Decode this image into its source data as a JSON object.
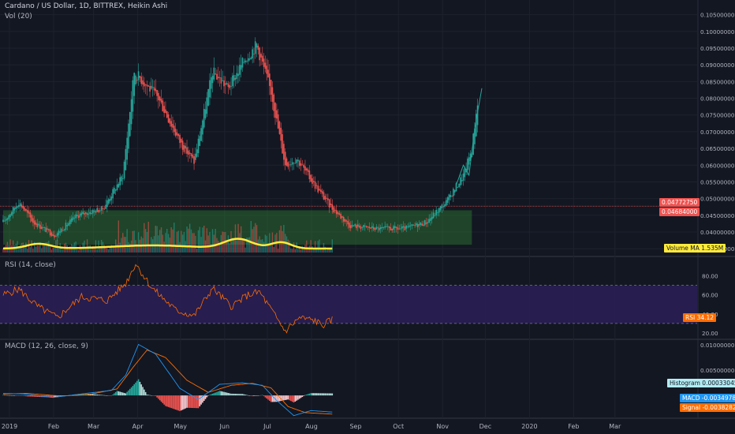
{
  "header": {
    "symbol_line": "Cardano / US Dollar, 1D, BITTREX, Heikin Ashi",
    "vol_label": "Vol (20)"
  },
  "colors": {
    "background": "#131722",
    "up": "#26a69a",
    "down": "#ef5350",
    "volume_ma": "#ffeb3b",
    "rsi_line": "#ff6d00",
    "rsi_band": "#2a1e54",
    "macd_line": "#2196f3",
    "signal_line": "#ff6d00",
    "demand_zone": "#2e7d32"
  },
  "chart_data": [
    {
      "type": "candlestick",
      "title": "Cardano / US Dollar, 1D, BITTREX, Heikin Ashi",
      "price_ticks": [
        "0.10500000",
        "0.10000000",
        "0.09500000",
        "0.09000000",
        "0.08500000",
        "0.08000000",
        "0.07500000",
        "0.07000000",
        "0.06500000",
        "0.06000000",
        "0.05500000",
        "0.05000000",
        "0.04500000",
        "0.04000000",
        "0.03500000"
      ],
      "x_ticks": [
        "2019",
        "Feb",
        "Mar",
        "Apr",
        "May",
        "Jun",
        "Jul",
        "Aug",
        "Sep",
        "Oct",
        "Nov",
        "Dec",
        "2020",
        "Feb",
        "Mar"
      ],
      "ylim": [
        0.0334,
        0.1075
      ],
      "path_keypoints": [
        {
          "date": "2019-01-01",
          "price": 0.043
        },
        {
          "date": "2019-01-12",
          "price": 0.049
        },
        {
          "date": "2019-01-22",
          "price": 0.043
        },
        {
          "date": "2019-02-06",
          "price": 0.039
        },
        {
          "date": "2019-02-22",
          "price": 0.045
        },
        {
          "date": "2019-03-12",
          "price": 0.047
        },
        {
          "date": "2019-03-26",
          "price": 0.057
        },
        {
          "date": "2019-04-03",
          "price": 0.088
        },
        {
          "date": "2019-04-20",
          "price": 0.08
        },
        {
          "date": "2019-05-05",
          "price": 0.067
        },
        {
          "date": "2019-05-15",
          "price": 0.061
        },
        {
          "date": "2019-05-28",
          "price": 0.088
        },
        {
          "date": "2019-06-08",
          "price": 0.083
        },
        {
          "date": "2019-06-20",
          "price": 0.092
        },
        {
          "date": "2019-06-28",
          "price": 0.096
        },
        {
          "date": "2019-07-08",
          "price": 0.082
        },
        {
          "date": "2019-07-18",
          "price": 0.06
        },
        {
          "date": "2019-07-26",
          "price": 0.062
        },
        {
          "date": "2019-08-06",
          "price": 0.055
        },
        {
          "date": "2019-08-18",
          "price": 0.048
        },
        {
          "date": "2019-09-01",
          "price": 0.042
        },
        {
          "date": "2019-09-20",
          "price": 0.041
        },
        {
          "date": "2019-10-10",
          "price": 0.041
        },
        {
          "date": "2019-10-25",
          "price": 0.043
        },
        {
          "date": "2019-11-08",
          "price": 0.049
        },
        {
          "date": "2019-11-20",
          "price": 0.057
        },
        {
          "date": "2019-11-26",
          "price": 0.065
        },
        {
          "date": "2019-11-30",
          "price": 0.079
        }
      ],
      "demand_zone": {
        "from": "2019-01-01",
        "to": "2019-11-26",
        "low": 0.0362,
        "high": 0.0465
      },
      "horizontal_line": {
        "price": 0.0477275
      },
      "price_labels": [
        {
          "text": "0.04772750",
          "price": 0.0477275
        },
        {
          "text": "0.04684000",
          "price": 0.04684
        }
      ],
      "volume_ma_label": "Volume MA",
      "volume_ma_value": "1.535M"
    },
    {
      "type": "line",
      "title": "RSI (14, close)",
      "y_ticks": [
        "80.00",
        "60.00",
        "40.00",
        "20.00"
      ],
      "ylim": [
        15,
        97
      ],
      "band": [
        30,
        70
      ],
      "series_label": "RSI",
      "last_value": "34.12",
      "keypoints": [
        {
          "date": "2019-01-01",
          "value": 60
        },
        {
          "date": "2019-01-12",
          "value": 66
        },
        {
          "date": "2019-01-25",
          "value": 48
        },
        {
          "date": "2019-02-08",
          "value": 36
        },
        {
          "date": "2019-02-25",
          "value": 58
        },
        {
          "date": "2019-03-15",
          "value": 54
        },
        {
          "date": "2019-03-28",
          "value": 72
        },
        {
          "date": "2019-04-04",
          "value": 93
        },
        {
          "date": "2019-04-15",
          "value": 68
        },
        {
          "date": "2019-05-02",
          "value": 44
        },
        {
          "date": "2019-05-15",
          "value": 38
        },
        {
          "date": "2019-05-28",
          "value": 67
        },
        {
          "date": "2019-06-10",
          "value": 48
        },
        {
          "date": "2019-06-22",
          "value": 60
        },
        {
          "date": "2019-06-30",
          "value": 63
        },
        {
          "date": "2019-07-10",
          "value": 40
        },
        {
          "date": "2019-07-18",
          "value": 22
        },
        {
          "date": "2019-07-28",
          "value": 36
        },
        {
          "date": "2019-08-08",
          "value": 33
        },
        {
          "date": "2019-08-13",
          "value": 28
        },
        {
          "date": "2019-08-20",
          "value": 34
        }
      ]
    },
    {
      "type": "line",
      "title": "MACD (12, 26, close, 9)",
      "y_ticks": [
        "0.01000000",
        "0.00500000"
      ],
      "ylim": [
        -0.0042,
        0.0108
      ],
      "histogram_label": "Histogram",
      "histogram_value": "0.00033045",
      "macd_label": "MACD",
      "macd_value": "-0.00349784",
      "signal_label": "Signal",
      "signal_value": "-0.00382829",
      "macd_keypoints": [
        {
          "date": "2019-01-01",
          "value": 0.0004
        },
        {
          "date": "2019-01-15",
          "value": 0.0003
        },
        {
          "date": "2019-02-05",
          "value": -0.0004
        },
        {
          "date": "2019-02-25",
          "value": 0.0003
        },
        {
          "date": "2019-03-18",
          "value": 0.001
        },
        {
          "date": "2019-03-28",
          "value": 0.004
        },
        {
          "date": "2019-04-06",
          "value": 0.0101
        },
        {
          "date": "2019-04-18",
          "value": 0.0082
        },
        {
          "date": "2019-05-05",
          "value": 0.0014
        },
        {
          "date": "2019-05-18",
          "value": -0.0008
        },
        {
          "date": "2019-06-02",
          "value": 0.0022
        },
        {
          "date": "2019-06-18",
          "value": 0.0025
        },
        {
          "date": "2019-07-02",
          "value": 0.002
        },
        {
          "date": "2019-07-12",
          "value": -0.001
        },
        {
          "date": "2019-07-24",
          "value": -0.004
        },
        {
          "date": "2019-08-05",
          "value": -0.003
        },
        {
          "date": "2019-08-20",
          "value": -0.0033
        }
      ],
      "signal_keypoints": [
        {
          "date": "2019-01-01",
          "value": 0.0003
        },
        {
          "date": "2019-01-18",
          "value": 0.0004
        },
        {
          "date": "2019-02-10",
          "value": -0.0001
        },
        {
          "date": "2019-03-01",
          "value": 0.0001
        },
        {
          "date": "2019-03-22",
          "value": 0.0013
        },
        {
          "date": "2019-04-02",
          "value": 0.0055
        },
        {
          "date": "2019-04-12",
          "value": 0.009
        },
        {
          "date": "2019-04-25",
          "value": 0.0075
        },
        {
          "date": "2019-05-10",
          "value": 0.003
        },
        {
          "date": "2019-05-25",
          "value": 0.0006
        },
        {
          "date": "2019-06-10",
          "value": 0.002
        },
        {
          "date": "2019-06-25",
          "value": 0.0024
        },
        {
          "date": "2019-07-08",
          "value": 0.0015
        },
        {
          "date": "2019-07-20",
          "value": -0.0022
        },
        {
          "date": "2019-08-01",
          "value": -0.0034
        },
        {
          "date": "2019-08-20",
          "value": -0.0037
        }
      ]
    }
  ]
}
